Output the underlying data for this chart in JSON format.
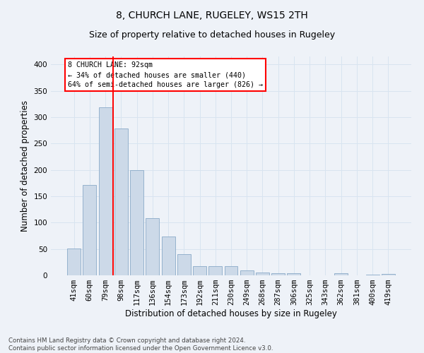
{
  "title": "8, CHURCH LANE, RUGELEY, WS15 2TH",
  "subtitle": "Size of property relative to detached houses in Rugeley",
  "xlabel": "Distribution of detached houses by size in Rugeley",
  "ylabel": "Number of detached properties",
  "categories": [
    "41sqm",
    "60sqm",
    "79sqm",
    "98sqm",
    "117sqm",
    "136sqm",
    "154sqm",
    "173sqm",
    "192sqm",
    "211sqm",
    "230sqm",
    "249sqm",
    "268sqm",
    "287sqm",
    "306sqm",
    "325sqm",
    "343sqm",
    "362sqm",
    "381sqm",
    "400sqm",
    "419sqm"
  ],
  "values": [
    51,
    172,
    319,
    279,
    200,
    109,
    74,
    40,
    18,
    17,
    17,
    10,
    6,
    4,
    4,
    0,
    0,
    4,
    0,
    2,
    3
  ],
  "bar_color": "#ccd9e8",
  "bar_edge_color": "#8aaac8",
  "vline_x": 2.5,
  "vline_color": "red",
  "annotation_text": "8 CHURCH LANE: 92sqm\n← 34% of detached houses are smaller (440)\n64% of semi-detached houses are larger (826) →",
  "annotation_box_color": "white",
  "annotation_box_edge_color": "red",
  "ylim": [
    0,
    415
  ],
  "yticks": [
    0,
    50,
    100,
    150,
    200,
    250,
    300,
    350,
    400
  ],
  "footer_text": "Contains HM Land Registry data © Crown copyright and database right 2024.\nContains public sector information licensed under the Open Government Licence v3.0.",
  "title_fontsize": 10,
  "subtitle_fontsize": 9,
  "xlabel_fontsize": 8.5,
  "ylabel_fontsize": 8.5,
  "tick_fontsize": 7.5,
  "grid_color": "#d8e4f0",
  "background_color": "#eef2f8"
}
